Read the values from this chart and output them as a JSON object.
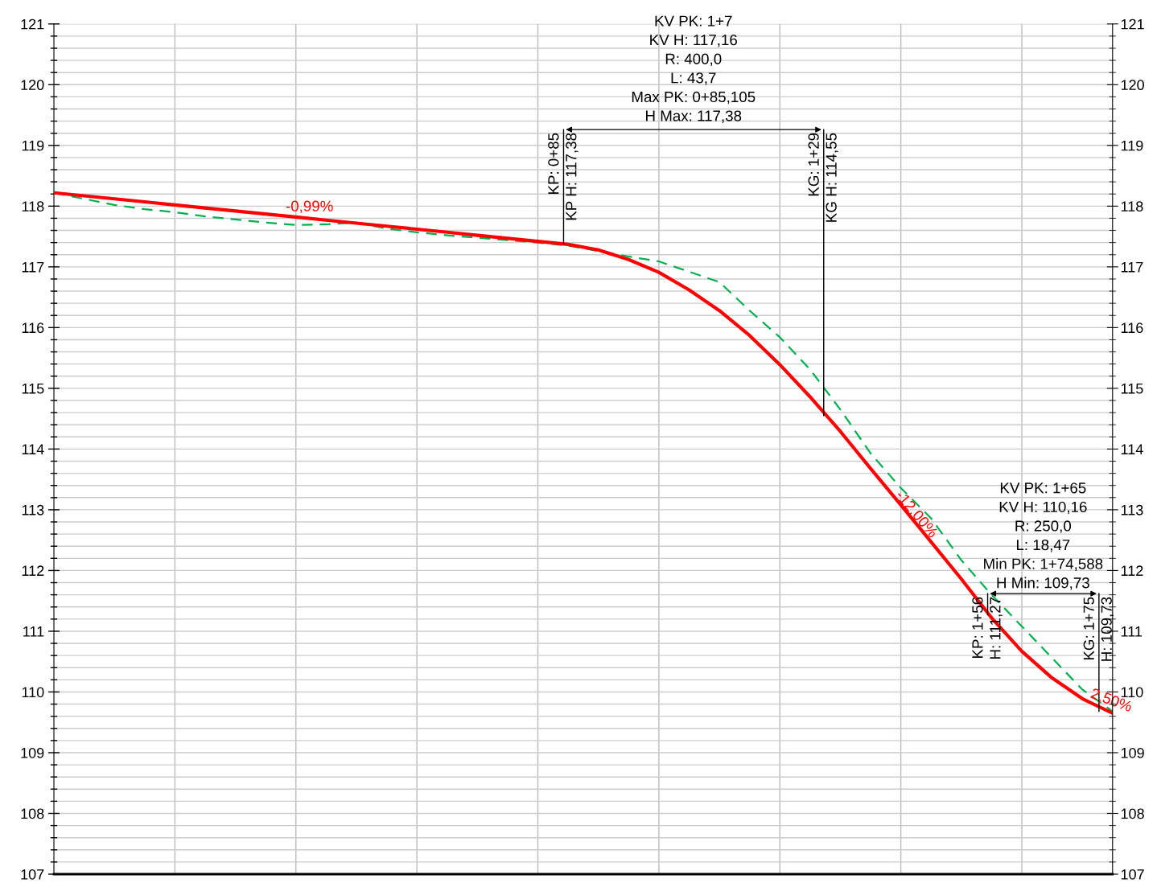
{
  "chart_data": {
    "type": "line",
    "categories": [
      null,
      null,
      null,
      null,
      null,
      null,
      null,
      null,
      null,
      null,
      null,
      null,
      null,
      null,
      null,
      null,
      null,
      null,
      null,
      null,
      null,
      null,
      null,
      null,
      null,
      null,
      null,
      null,
      null,
      null,
      null,
      null,
      null,
      null,
      null,
      null
    ],
    "series": [
      {
        "color": "#00b050",
        "line_style": "dashed",
        "values": [
          118.22,
          118.12,
          118.02,
          117.95,
          117.9,
          117.83,
          117.78,
          117.73,
          117.69,
          117.7,
          117.73,
          117.63,
          117.57,
          117.52,
          117.48,
          117.44,
          117.4,
          117.35,
          117.26,
          117.17,
          117.09,
          116.92,
          116.75,
          116.28,
          115.84,
          115.31,
          114.65,
          113.93,
          113.36,
          112.86,
          112.17,
          111.6,
          111.08,
          110.56,
          110.04,
          109.68
        ]
      },
      {
        "color": "#ff0000",
        "line_style": "solid",
        "values": [
          118.22,
          118.17,
          118.12,
          118.07,
          118.02,
          117.97,
          117.92,
          117.87,
          117.82,
          117.77,
          117.72,
          117.67,
          117.62,
          117.57,
          117.52,
          117.47,
          117.42,
          117.37,
          117.28,
          117.12,
          116.91,
          116.62,
          116.28,
          115.87,
          115.39,
          114.86,
          114.29,
          113.68,
          113.08,
          112.47,
          111.86,
          111.22,
          110.67,
          110.23,
          109.89,
          109.65
        ]
      }
    ],
    "ylim": [
      107,
      121
    ],
    "yticks": [
      107,
      {
        "value": 107.2,
        "label": null
      },
      {
        "value": 107.4,
        "label": null
      },
      {
        "value": 107.6,
        "label": null
      },
      {
        "value": 107.8,
        "label": null
      },
      108,
      {
        "value": 108.2,
        "label": null
      },
      {
        "value": 108.4,
        "label": null
      },
      {
        "value": 108.6,
        "label": null
      },
      {
        "value": 108.8,
        "label": null
      },
      109,
      {
        "value": 109.2,
        "label": null
      },
      {
        "value": 109.4,
        "label": null
      },
      {
        "value": 109.6,
        "label": null
      },
      {
        "value": 109.8,
        "label": null
      },
      110,
      {
        "value": 110.2,
        "label": null
      },
      {
        "value": 110.4,
        "label": null
      },
      {
        "value": 110.6,
        "label": null
      },
      {
        "value": 110.8,
        "label": null
      },
      111,
      {
        "value": 111.2,
        "label": null
      },
      {
        "value": 111.4,
        "label": null
      },
      {
        "value": 111.6,
        "label": null
      },
      {
        "value": 111.8,
        "label": null
      },
      112,
      {
        "value": 112.2,
        "label": null
      },
      {
        "value": 112.4,
        "label": null
      },
      {
        "value": 112.6,
        "label": null
      },
      {
        "value": 112.8,
        "label": null
      },
      113,
      {
        "value": 113.2,
        "label": null
      },
      {
        "value": 113.4,
        "label": null
      },
      {
        "value": 113.6,
        "label": null
      },
      {
        "value": 113.8,
        "label": null
      },
      114,
      {
        "value": 114.2,
        "label": null
      },
      {
        "value": 114.4,
        "label": null
      },
      {
        "value": 114.6,
        "label": null
      },
      {
        "value": 114.8,
        "label": null
      },
      115,
      {
        "value": 115.2,
        "label": null
      },
      {
        "value": 115.4,
        "label": null
      },
      {
        "value": 115.6,
        "label": null
      },
      {
        "value": 115.8,
        "label": null
      },
      116,
      {
        "value": 116.2,
        "label": null
      },
      {
        "value": 116.4,
        "label": null
      },
      {
        "value": 116.6,
        "label": null
      },
      {
        "value": 116.8,
        "label": null
      },
      117,
      {
        "value": 117.2,
        "label": null
      },
      {
        "value": 117.4,
        "label": null
      },
      {
        "value": 117.6,
        "label": null
      },
      {
        "value": 117.8,
        "label": null
      },
      118,
      {
        "value": 118.2,
        "label": null
      },
      {
        "value": 118.4,
        "label": null
      },
      {
        "value": 118.6,
        "label": null
      },
      {
        "value": 118.8,
        "label": null
      },
      119,
      {
        "value": 119.2,
        "label": null
      },
      {
        "value": 119.4,
        "label": null
      },
      {
        "value": 119.6,
        "label": null
      },
      {
        "value": 119.8,
        "label": null
      },
      120,
      {
        "value": 120.2,
        "label": null
      },
      {
        "value": 120.4,
        "label": null
      },
      {
        "value": 120.6,
        "label": null
      },
      {
        "value": 120.8,
        "label": null
      },
      121
    ],
    "y2lim": [
      107,
      121
    ],
    "y2ticks": [
      107,
      108,
      109,
      110,
      111,
      112,
      113,
      114,
      115,
      116,
      117,
      118,
      119,
      120,
      121
    ],
    "grid": true,
    "marker": "none",
    "annotations": [
      "KV PK: 1+7\nKV H: 117,16\nR: 400,0\nL: 43,7\nMax PK: 0+85,105\nH Max: 117,38",
      "KV PK: 1+65\nKV H: 110,16\nR: 250,0\nL: 18,47\nMin PK: 1+74,588\nH Min: 109,73",
      "-0,99%",
      "-12,00%",
      "2,50%",
      "KP: 0+85",
      "KP H: 117,38",
      "KG: 1+29",
      "KG H: 114,55",
      "KP: 1+56",
      "H: 111,27",
      "KG: 1+75",
      "H: 109,73"
    ]
  }
}
